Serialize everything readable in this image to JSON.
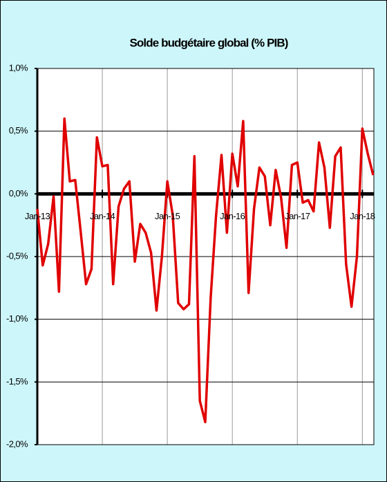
{
  "chart_data": {
    "type": "line",
    "title": "Solde budgétaire global (% PIB)",
    "categories": [
      "Jan-13",
      null,
      null,
      null,
      null,
      null,
      null,
      null,
      null,
      null,
      null,
      null,
      "Jan-14",
      null,
      null,
      null,
      null,
      null,
      null,
      null,
      null,
      null,
      null,
      null,
      "Jan-15",
      null,
      null,
      null,
      null,
      null,
      null,
      null,
      null,
      null,
      null,
      null,
      "Jan-16",
      null,
      null,
      null,
      null,
      null,
      null,
      null,
      null,
      null,
      null,
      null,
      "Jan-17",
      null,
      null,
      null,
      null,
      null,
      null,
      null,
      null,
      null,
      null,
      null,
      "Jan-18",
      null,
      null
    ],
    "series": [
      {
        "color": "#e00000",
        "values": [
          -0.12,
          -0.57,
          -0.4,
          -0.02,
          -0.78,
          0.6,
          0.1,
          0.11,
          -0.3,
          -0.72,
          -0.6,
          0.45,
          0.22,
          0.23,
          -0.72,
          -0.1,
          0.04,
          0.1,
          -0.54,
          -0.24,
          -0.31,
          -0.47,
          -0.93,
          -0.5,
          0.1,
          -0.17,
          -0.87,
          -0.92,
          -0.88,
          0.3,
          -1.65,
          -1.82,
          -0.83,
          -0.17,
          0.31,
          -0.31,
          0.32,
          0.06,
          0.58,
          -0.79,
          -0.12,
          0.21,
          0.14,
          -0.25,
          0.19,
          -0.03,
          -0.43,
          0.23,
          0.25,
          -0.07,
          -0.05,
          -0.14,
          0.41,
          0.21,
          -0.27,
          0.3,
          0.37,
          -0.56,
          -0.9,
          -0.5,
          0.52,
          0.32,
          0.15
        ]
      }
    ],
    "ylim": [
      -2.0,
      1.0
    ],
    "yticks": [
      {
        "value": -2.0,
        "label": "-2,0%"
      },
      {
        "value": -1.5,
        "label": "-1,5%"
      },
      {
        "value": -1.0,
        "label": "-1,0%"
      },
      {
        "value": -0.5,
        "label": "-0,5%"
      },
      {
        "value": 0.0,
        "label": "0,0%"
      },
      {
        "value": 0.5,
        "label": "0,5%"
      },
      {
        "value": 1.0,
        "label": "1,0%"
      }
    ],
    "grid": true
  }
}
